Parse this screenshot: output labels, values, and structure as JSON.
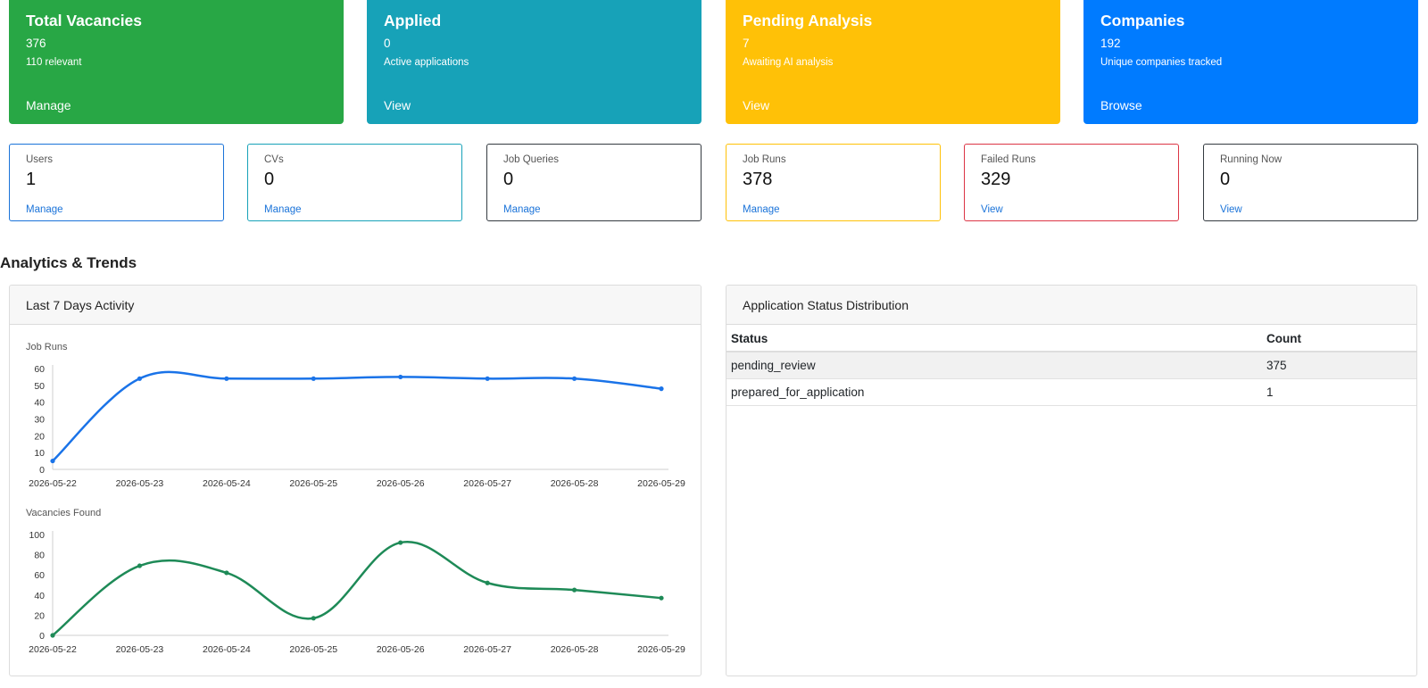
{
  "summary_cards": [
    {
      "title": "Total Vacancies",
      "value": "376",
      "sub": "110 relevant",
      "link": "Manage",
      "color": "#28a745"
    },
    {
      "title": "Applied",
      "value": "0",
      "sub": "Active applications",
      "link": "View",
      "color": "#17a2b8"
    },
    {
      "title": "Pending Analysis",
      "value": "7",
      "sub": "Awaiting AI analysis",
      "link": "View",
      "color": "#ffc107"
    },
    {
      "title": "Companies",
      "value": "192",
      "sub": "Unique companies tracked",
      "link": "Browse",
      "color": "#007bff"
    }
  ],
  "stat_cards": [
    {
      "label": "Users",
      "value": "1",
      "link": "Manage",
      "border": "#1a73d9"
    },
    {
      "label": "CVs",
      "value": "0",
      "link": "Manage",
      "border": "#17a2b8"
    },
    {
      "label": "Job Queries",
      "value": "0",
      "link": "Manage",
      "border": "#343a40"
    },
    {
      "label": "Job Runs",
      "value": "378",
      "link": "Manage",
      "border": "#ffc107"
    },
    {
      "label": "Failed Runs",
      "value": "329",
      "link": "View",
      "border": "#dc3545"
    },
    {
      "label": "Running Now",
      "value": "0",
      "link": "View",
      "border": "#343a40"
    }
  ],
  "analytics": {
    "section_title": "Analytics & Trends",
    "activity_panel_title": "Last 7 Days Activity",
    "status_panel_title": "Application Status Distribution"
  },
  "status_table": {
    "headers": [
      "Status",
      "Count"
    ],
    "rows": [
      [
        "pending_review",
        "375"
      ],
      [
        "prepared_for_application",
        "1"
      ]
    ]
  },
  "chart_data": [
    {
      "type": "line",
      "title": "Job Runs",
      "x": [
        "2026-05-22",
        "2026-05-23",
        "2026-05-24",
        "2026-05-25",
        "2026-05-26",
        "2026-05-27",
        "2026-05-28",
        "2026-05-29"
      ],
      "values": [
        5,
        54,
        54,
        54,
        55,
        54,
        54,
        48
      ],
      "ylim": [
        0,
        60
      ],
      "yticks": [
        0,
        10,
        20,
        30,
        40,
        50,
        60
      ],
      "color": "#1a73e8"
    },
    {
      "type": "line",
      "title": "Vacancies Found",
      "x": [
        "2026-05-22",
        "2026-05-23",
        "2026-05-24",
        "2026-05-25",
        "2026-05-26",
        "2026-05-27",
        "2026-05-28",
        "2026-05-29"
      ],
      "values": [
        0,
        69,
        62,
        17,
        92,
        52,
        45,
        37
      ],
      "ylim": [
        0,
        100
      ],
      "yticks": [
        0,
        20,
        40,
        60,
        80,
        100
      ],
      "color": "#1e8a57"
    }
  ]
}
